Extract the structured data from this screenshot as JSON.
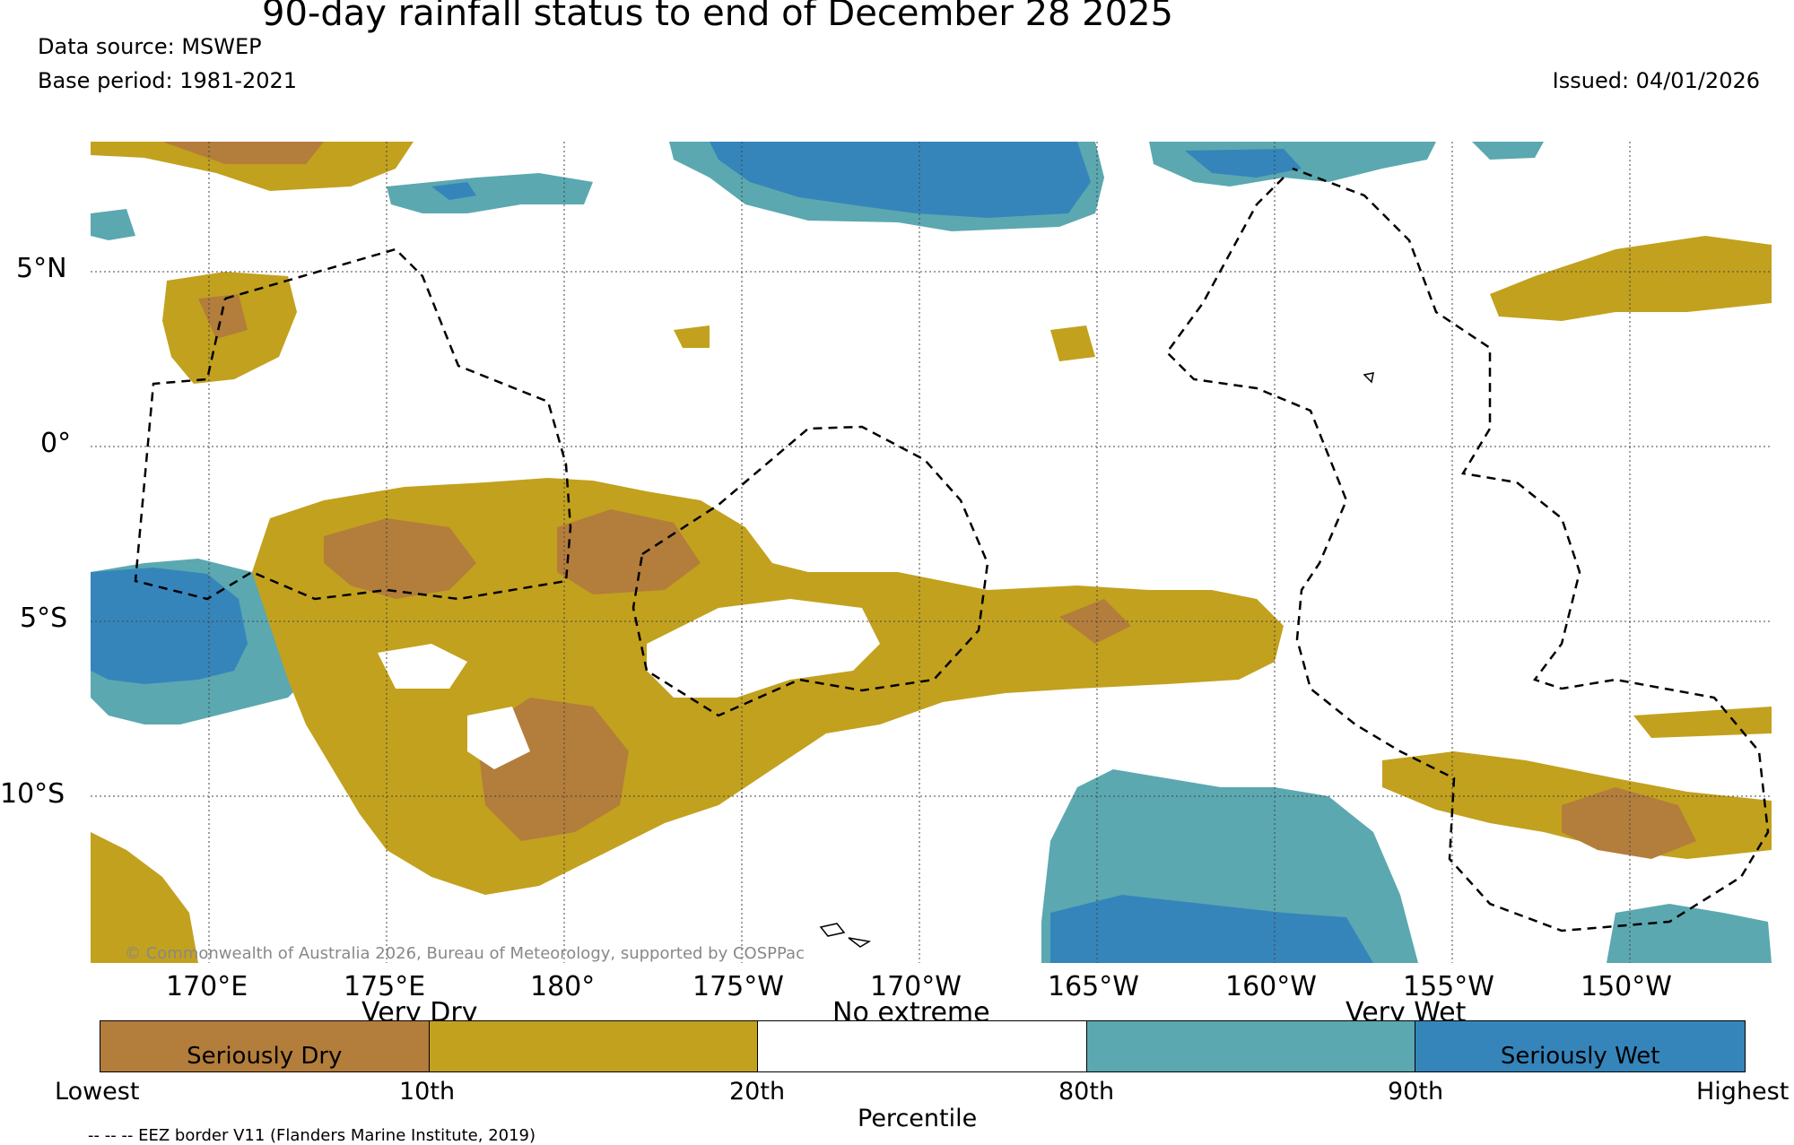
{
  "title": "90-day rainfall status to end of December 28 2025",
  "data_source": "Data source: MSWEP",
  "base_period": "Base period: 1981-2021",
  "issued": "Issued: 04/01/2026",
  "map": {
    "lat_labels": [
      "5°N",
      "0°",
      "5°S",
      "10°S"
    ],
    "lon_labels": [
      "170°E",
      "175°E",
      "180°",
      "175°W",
      "170°W",
      "165°W",
      "160°W",
      "155°W",
      "150°W"
    ],
    "copyright": "© Commonwealth of Australia 2026, Bureau of Meteorology, supported by COSPPac"
  },
  "legend": {
    "categories": [
      {
        "label": "Seriously Dry",
        "color": "#b37d3c"
      },
      {
        "label": "",
        "color": "#c2a11e"
      },
      {
        "label": "",
        "color": "#ffffff"
      },
      {
        "label": "",
        "color": "#5ba8b0"
      },
      {
        "label": "Seriously Wet",
        "color": "#3585bb"
      }
    ],
    "group_labels": [
      "Very Dry",
      "No extreme",
      "Very Wet"
    ],
    "ticks": [
      "Lowest",
      "10th",
      "20th",
      "80th",
      "90th",
      "Highest"
    ],
    "axis_label": "Percentile",
    "eez_note": "-- -- -- EEZ border V11 (Flanders Marine Institute, 2019)"
  },
  "colors": {
    "seriously_dry": "#b37d3c",
    "very_dry": "#c2a11e",
    "no_extreme": "#ffffff",
    "very_wet": "#5ba8b0",
    "seriously_wet": "#3585bb"
  }
}
